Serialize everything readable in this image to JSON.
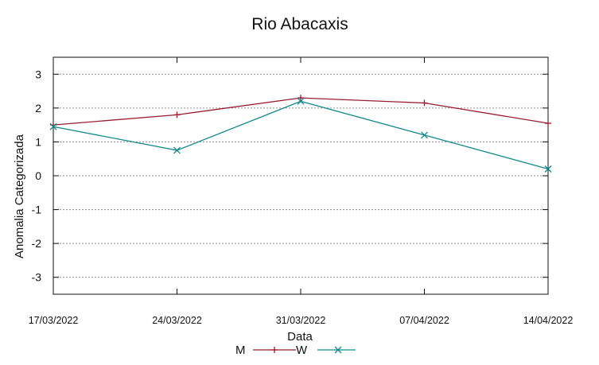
{
  "chart_data": {
    "type": "line",
    "title": "Rio Abacaxis",
    "xlabel": "Data",
    "ylabel": "Anomalia Categorizada",
    "categories": [
      "17/03/2022",
      "24/03/2022",
      "31/03/2022",
      "07/04/2022",
      "14/04/2022"
    ],
    "ylim": [
      -3.5,
      3.5
    ],
    "yticks": [
      "3",
      "2",
      "1",
      "0",
      "-1",
      "-2",
      "-3"
    ],
    "grid": true,
    "legend_position": "bottom",
    "series": [
      {
        "name": "M",
        "values": [
          1.5,
          1.8,
          2.3,
          2.15,
          1.55
        ],
        "color": "#9b1c31",
        "marker": "+"
      },
      {
        "name": "W",
        "values": [
          1.45,
          0.75,
          2.2,
          1.2,
          0.2
        ],
        "color": "#138a8a",
        "marker": "x"
      }
    ]
  }
}
